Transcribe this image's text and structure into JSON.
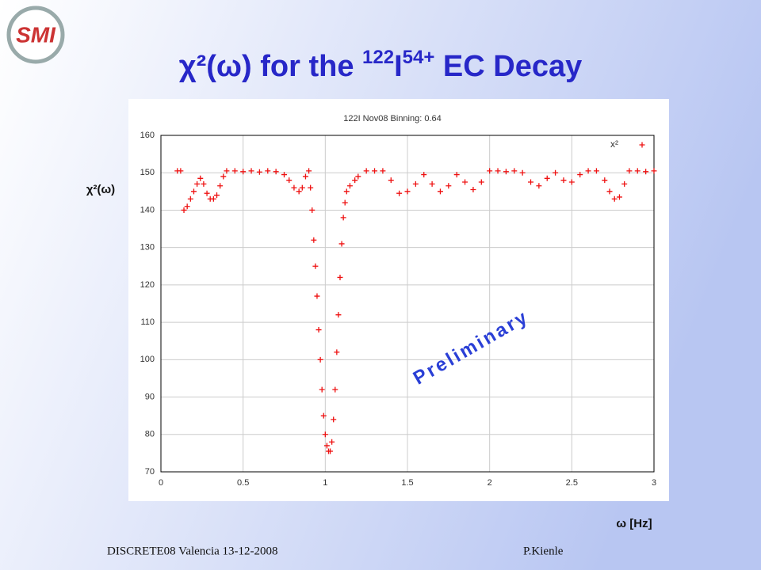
{
  "logo": "SMI",
  "title": {
    "lead": "χ²(ω) for the ",
    "mass": "122",
    "element": "I",
    "charge": "54+",
    "rest": " EC Decay"
  },
  "chart_data": {
    "type": "scatter",
    "title": "122I Nov08 Binning: 0.64",
    "x_label": "ω [Hz]",
    "y_label": "χ²(ω)",
    "legend": {
      "name": "x²",
      "position": "upper right"
    },
    "color": "#ee1111",
    "marker": "+",
    "grid": true,
    "annotation": "Preliminary",
    "xlim": [
      0,
      3
    ],
    "ylim": [
      70,
      160
    ],
    "xticks": [
      0,
      0.5,
      1,
      1.5,
      2,
      2.5,
      3
    ],
    "yticks": [
      70,
      80,
      90,
      100,
      110,
      120,
      130,
      140,
      150,
      160
    ],
    "x": [
      0.1,
      0.12,
      0.14,
      0.16,
      0.18,
      0.2,
      0.22,
      0.24,
      0.26,
      0.28,
      0.3,
      0.32,
      0.34,
      0.36,
      0.38,
      0.4,
      0.45,
      0.5,
      0.55,
      0.6,
      0.65,
      0.7,
      0.75,
      0.78,
      0.81,
      0.84,
      0.86,
      0.88,
      0.9,
      0.91,
      0.92,
      0.93,
      0.94,
      0.95,
      0.96,
      0.97,
      0.98,
      0.99,
      1.0,
      1.01,
      1.02,
      1.03,
      1.04,
      1.05,
      1.06,
      1.07,
      1.08,
      1.09,
      1.1,
      1.11,
      1.12,
      1.13,
      1.15,
      1.18,
      1.2,
      1.25,
      1.3,
      1.35,
      1.4,
      1.45,
      1.5,
      1.55,
      1.6,
      1.65,
      1.7,
      1.75,
      1.8,
      1.85,
      1.9,
      1.95,
      2.0,
      2.05,
      2.1,
      2.15,
      2.2,
      2.25,
      2.3,
      2.35,
      2.4,
      2.45,
      2.5,
      2.55,
      2.6,
      2.65,
      2.7,
      2.73,
      2.76,
      2.79,
      2.82,
      2.85,
      2.9,
      2.95,
      3.0
    ],
    "values": [
      150.5,
      150.5,
      140,
      141,
      143,
      145,
      147,
      148.5,
      147,
      144.5,
      143,
      143,
      144,
      146.5,
      149,
      150.5,
      150.5,
      150.3,
      150.5,
      150.2,
      150.5,
      150.3,
      149.5,
      148,
      146,
      145,
      146,
      149,
      150.5,
      146,
      140,
      132,
      125,
      117,
      108,
      100,
      92,
      85,
      80,
      77,
      75.5,
      75.5,
      78,
      84,
      92,
      102,
      112,
      122,
      131,
      138,
      142,
      145,
      146.5,
      148,
      149,
      150.5,
      150.5,
      150.5,
      148,
      144.5,
      145,
      147,
      149.5,
      147,
      145,
      146.5,
      149.5,
      147.5,
      145.5,
      147.5,
      150.5,
      150.5,
      150.3,
      150.5,
      150,
      147.5,
      146.5,
      148.5,
      150,
      148,
      147.5,
      149.5,
      150.5,
      150.5,
      148,
      145,
      143,
      143.5,
      147,
      150.5,
      150.5,
      150.3,
      150.5
    ]
  },
  "footer": {
    "left": "DISCRETE08  Valencia 13-12-2008",
    "right": "P.Kienle"
  }
}
